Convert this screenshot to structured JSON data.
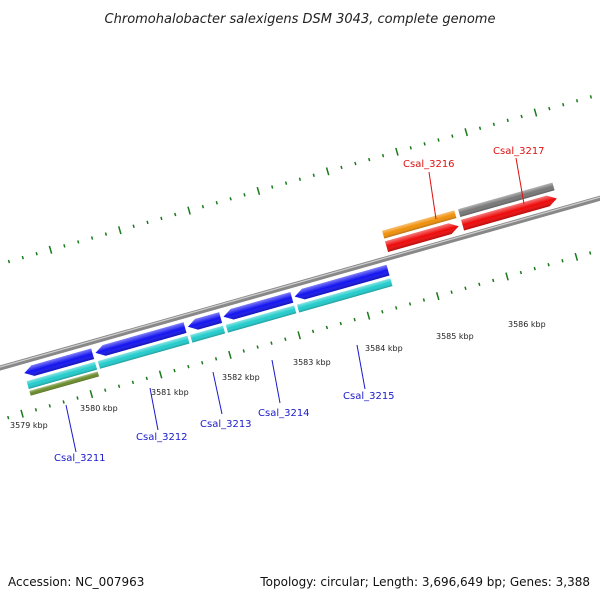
{
  "header": {
    "title": "Chromohalobacter salexigens DSM 3043, complete genome"
  },
  "footer": {
    "accession": "Accession: NC_007963",
    "summary": "Topology: circular; Length: 3,696,649 bp; Genes: 3,388"
  },
  "scale": {
    "labels": [
      "3579 kbp",
      "3580 kbp",
      "3581 kbp",
      "3582 kbp",
      "3583 kbp",
      "3584 kbp",
      "3585 kbp",
      "3586 kbp"
    ]
  },
  "genes": [
    {
      "name": "Csal_3211",
      "color": "#1a1acc"
    },
    {
      "name": "Csal_3212",
      "color": "#1a1acc"
    },
    {
      "name": "Csal_3213",
      "color": "#1a1acc"
    },
    {
      "name": "Csal_3214",
      "color": "#1a1acc"
    },
    {
      "name": "Csal_3215",
      "color": "#1a1acc"
    },
    {
      "name": "Csal_3216",
      "color": "#e01010"
    },
    {
      "name": "Csal_3217",
      "color": "#e01010"
    }
  ],
  "colors": {
    "cds_blue": "#1414f0",
    "feature_cyan": "#22cccc",
    "feature_olive": "#6a8c2a",
    "feature_orange": "#f0900a",
    "feature_gray": "#777777",
    "cds_red": "#ee0a0a",
    "tick_green": "#1a7a1a",
    "backbone": "#888888"
  }
}
